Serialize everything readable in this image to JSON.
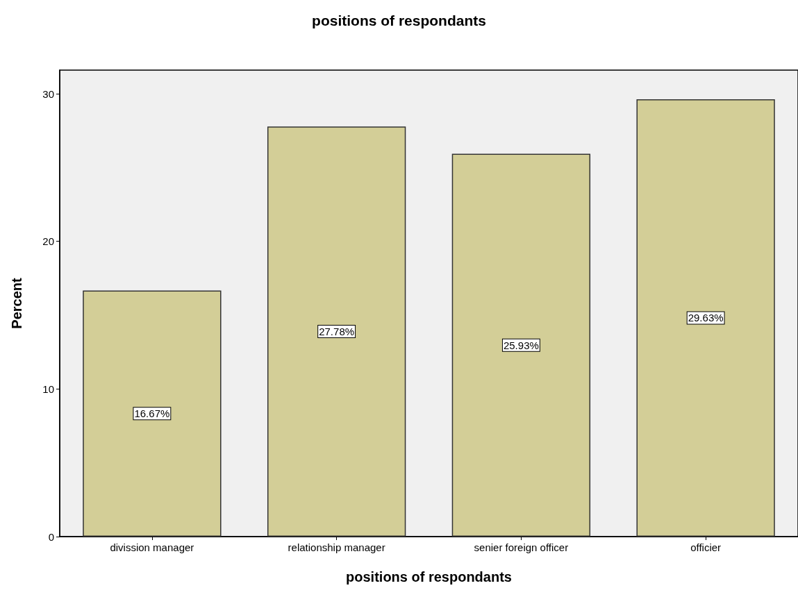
{
  "chart_data": {
    "type": "bar",
    "title": "positions of respondants",
    "xlabel": "positions of respondants",
    "ylabel": "Percent",
    "categories": [
      "divission manager",
      "relationship manager",
      "senier foreign officer",
      "officier"
    ],
    "values": [
      16.67,
      27.78,
      25.93,
      29.63
    ],
    "value_labels": [
      "16.67%",
      "27.78%",
      "25.93%",
      "29.63%"
    ],
    "color": "#d3ce97",
    "ylim": [
      0,
      31.6
    ],
    "yticks": [
      0,
      10,
      20,
      30
    ],
    "grid": false
  }
}
